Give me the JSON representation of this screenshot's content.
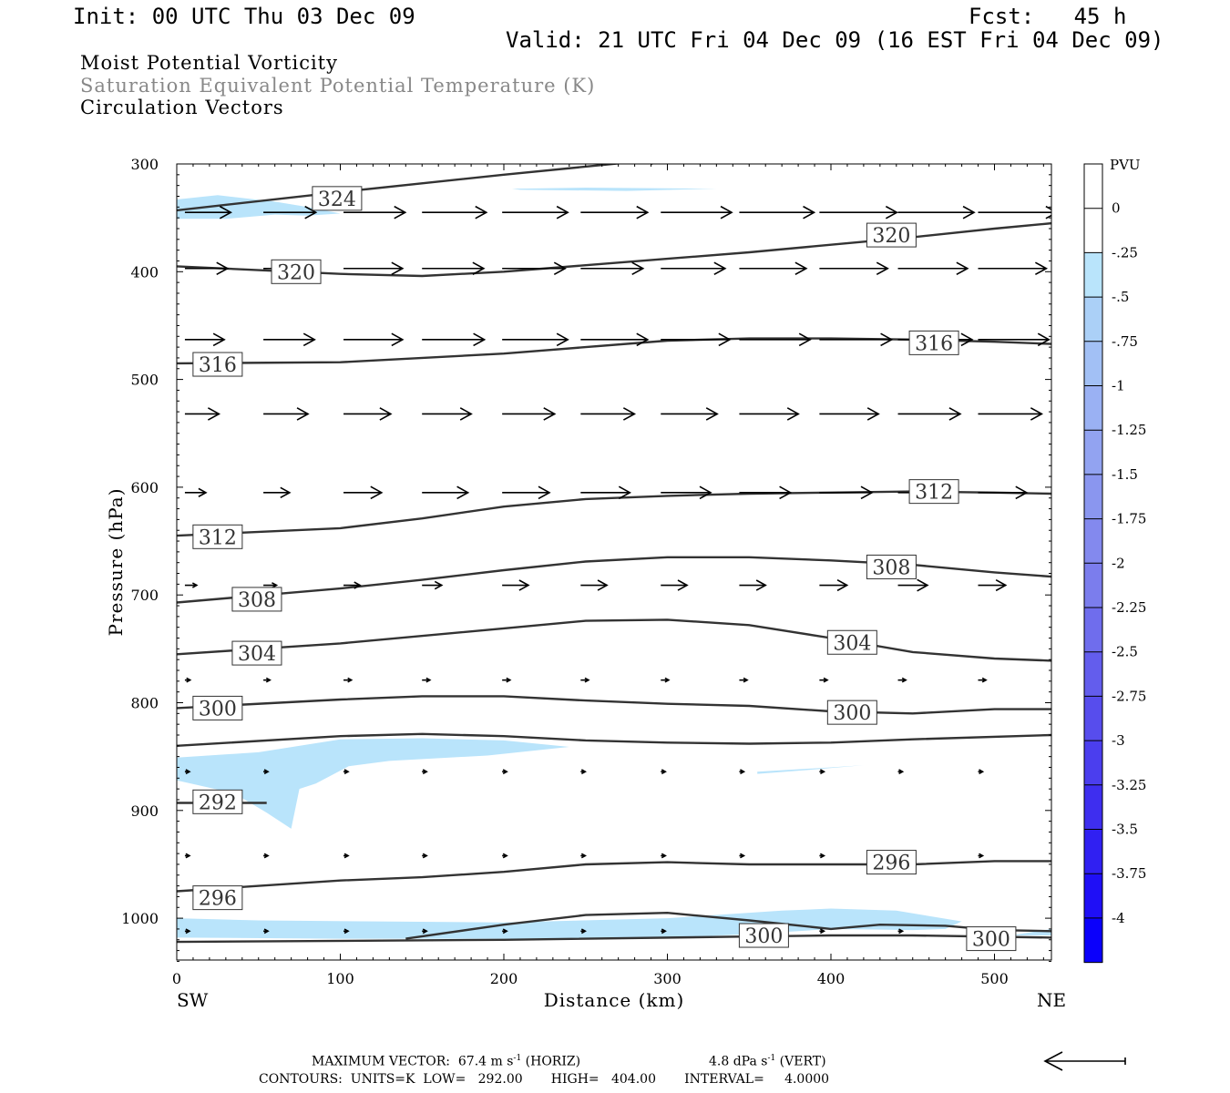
{
  "header": {
    "init": "Init: 00 UTC Thu 03 Dec 09",
    "fcst": "Fcst:   45 h",
    "valid": "Valid: 21 UTC Fri 04 Dec 09 (16 EST Fri 04 Dec 09)"
  },
  "fields": {
    "field1": "Moist Potential Vorticity",
    "field2": "Saturation Equivalent Potential Temperature (K)",
    "field3": "Circulation Vectors",
    "field2_color": "#888888"
  },
  "colorbar": {
    "unit": "PVU",
    "labels": [
      "0",
      "-.25",
      "-.5",
      "-.75",
      "-1",
      "-1.25",
      "-1.5",
      "-1.75",
      "-2",
      "-2.25",
      "-2.5",
      "-2.75",
      "-3",
      "-3.25",
      "-3.5",
      "-3.75",
      "-4"
    ],
    "colors": [
      "#ffffff",
      "#ffffff",
      "#b9e4fb",
      "#abd0f7",
      "#a2c0f5",
      "#9ab1f3",
      "#92a3f1",
      "#8a96ef",
      "#8389ee",
      "#7b7ded",
      "#6f6ded",
      "#635ded",
      "#574ded",
      "#4b3eee",
      "#3e2eef",
      "#3020f2",
      "#1f0ff6",
      "#0b00fb"
    ]
  },
  "footer": {
    "max_vector": "MAXIMUM VECTOR:  67.4 m s",
    "exp1": "-1",
    "horiz": " (HORIZ)",
    "vert_val": "4.8 dPa s",
    "exp2": "-1",
    "vert": " (VERT)",
    "contours": "CONTOURS:  UNITS=K  LOW=   292.00       HIGH=   404.00       INTERVAL=     4.0000"
  },
  "chart_data": {
    "type": "cross-section",
    "xlabel": "Distance (km)",
    "ylabel": "Pressure (hPa)",
    "x_ticks": [
      0,
      100,
      200,
      300,
      400,
      500
    ],
    "y_ticks": [
      300,
      400,
      500,
      600,
      700,
      800,
      900,
      1000
    ],
    "xlim": [
      0,
      535
    ],
    "ylim": [
      1040,
      300
    ],
    "left_end": "SW",
    "right_end": "NE",
    "contour_color": "#333333",
    "mpv_color": "#b9e4fb",
    "contours": [
      {
        "value": 324,
        "x": [
          0,
          100,
          200,
          300,
          290
        ],
        "p": [
          343,
          326,
          310,
          295,
          300
        ],
        "labels": [
          {
            "text": "324",
            "x": 98,
            "p": 332
          }
        ]
      },
      {
        "value": 320,
        "x": [
          0,
          100,
          150,
          200,
          250,
          300,
          350,
          400,
          450,
          500,
          535
        ],
        "p": [
          395,
          402,
          404,
          400,
          394,
          388,
          382,
          375,
          368,
          360,
          355
        ],
        "labels": [
          {
            "text": "320",
            "x": 73,
            "p": 400
          },
          {
            "text": "320",
            "x": 437,
            "p": 366
          }
        ]
      },
      {
        "value": 316,
        "x": [
          0,
          100,
          200,
          250,
          300,
          350,
          400,
          450,
          500,
          535
        ],
        "p": [
          485,
          484,
          476,
          470,
          464,
          462,
          462,
          463,
          465,
          467
        ],
        "labels": [
          {
            "text": "316",
            "x": 25,
            "p": 486
          },
          {
            "text": "316",
            "x": 463,
            "p": 466
          }
        ]
      },
      {
        "value": 312,
        "x": [
          0,
          100,
          150,
          200,
          250,
          300,
          350,
          400,
          450,
          500,
          535
        ],
        "p": [
          645,
          638,
          629,
          618,
          611,
          608,
          606,
          605,
          604,
          605,
          606
        ],
        "labels": [
          {
            "text": "312",
            "x": 25,
            "p": 646
          },
          {
            "text": "312",
            "x": 463,
            "p": 604
          }
        ]
      },
      {
        "value": 308,
        "x": [
          0,
          100,
          150,
          200,
          250,
          300,
          350,
          400,
          450,
          500,
          535
        ],
        "p": [
          707,
          694,
          686,
          677,
          669,
          665,
          665,
          668,
          672,
          679,
          683
        ],
        "labels": [
          {
            "text": "308",
            "x": 49,
            "p": 704
          },
          {
            "text": "308",
            "x": 437,
            "p": 674
          }
        ]
      },
      {
        "value": 304,
        "x": [
          0,
          100,
          200,
          250,
          300,
          350,
          400,
          450,
          500,
          535
        ],
        "p": [
          755,
          745,
          731,
          724,
          723,
          728,
          740,
          753,
          759,
          761
        ],
        "labels": [
          {
            "text": "304",
            "x": 49,
            "p": 754
          },
          {
            "text": "304",
            "x": 413,
            "p": 744
          }
        ]
      },
      {
        "value": 300,
        "x": [
          0,
          100,
          150,
          200,
          250,
          300,
          350,
          400,
          450,
          500,
          535
        ],
        "p": [
          805,
          797,
          794,
          794,
          798,
          801,
          803,
          808,
          810,
          806,
          806
        ],
        "labels": [
          {
            "text": "300",
            "x": 25,
            "p": 805
          },
          {
            "text": "300",
            "x": 413,
            "p": 809
          }
        ]
      },
      {
        "value": 296,
        "x": [
          0,
          100,
          150,
          200,
          250,
          300,
          350,
          400,
          450,
          535
        ],
        "p": [
          840,
          831,
          829,
          831,
          835,
          837,
          838,
          837,
          834,
          830
        ],
        "labels": []
      },
      {
        "value": 292,
        "x": [
          0,
          55
        ],
        "p": [
          893,
          893
        ],
        "labels": [
          {
            "text": "292",
            "x": 25,
            "p": 892
          }
        ]
      },
      {
        "value": 296,
        "x": [
          0,
          100,
          150,
          200,
          250,
          300,
          350,
          400,
          450,
          500,
          535
        ],
        "p": [
          975,
          965,
          962,
          957,
          950,
          948,
          950,
          950,
          950,
          947,
          947
        ],
        "labels": [
          {
            "text": "296",
            "x": 25,
            "p": 981
          },
          {
            "text": "296",
            "x": 437,
            "p": 948
          }
        ]
      },
      {
        "value": 300,
        "x": [
          140,
          200,
          250,
          300,
          350,
          400,
          430,
          470,
          500,
          535
        ],
        "p": [
          1019,
          1006,
          997,
          995,
          1002,
          1010,
          1006,
          1007,
          1011,
          1012
        ],
        "labels": [
          {
            "text": "300",
            "x": 359,
            "p": 1016
          },
          {
            "text": "300",
            "x": 498,
            "p": 1019
          }
        ]
      },
      {
        "value": 300,
        "x": [
          0,
          200,
          350,
          400,
          450,
          535
        ],
        "p": [
          1022,
          1020,
          1017,
          1016,
          1016,
          1018
        ],
        "labels": []
      }
    ],
    "mpv_regions": [
      {
        "x": [
          0,
          25,
          60,
          80,
          100,
          80,
          60,
          30,
          0
        ],
        "p": [
          333,
          329,
          335,
          340,
          346,
          348,
          347,
          351,
          351
        ]
      },
      {
        "x": [
          205,
          250,
          330,
          275,
          210
        ],
        "p": [
          323,
          322,
          323,
          325,
          324
        ]
      },
      {
        "x": [
          0,
          50,
          100,
          150,
          200,
          240,
          190,
          130,
          105,
          85,
          75,
          70,
          55,
          35,
          0
        ],
        "p": [
          851,
          846,
          834,
          833,
          835,
          841,
          849,
          854,
          859,
          875,
          880,
          917,
          902,
          884,
          872
        ]
      },
      {
        "x": [
          355,
          400,
          420,
          390,
          355
        ],
        "p": [
          864,
          860,
          858,
          862,
          866
        ]
      },
      {
        "x": [
          0,
          50,
          200,
          300,
          370,
          400,
          440,
          480,
          470,
          450,
          400,
          350,
          300,
          200,
          100,
          0
        ],
        "p": [
          1000,
          1002,
          1004,
          1000,
          993,
          991,
          993,
          1003,
          1010,
          1011,
          1010,
          1015,
          1018,
          1019,
          1019,
          1018
        ]
      },
      {
        "x": [
          10,
          90,
          180,
          230,
          180,
          90,
          10
        ],
        "p": [
          1014,
          1014,
          1013,
          1015,
          1016,
          1016,
          1016
        ]
      },
      {
        "x": [
          510,
          535,
          535
        ],
        "p": [
          1016,
          1010,
          1016
        ]
      }
    ],
    "vectors": [
      {
        "p": 345,
        "u": [
          70,
          80,
          94,
          98,
          100,
          102,
          108,
          114,
          118,
          116,
          120
        ]
      },
      {
        "p": 397,
        "u": [
          65,
          72,
          90,
          94,
          96,
          95,
          98,
          102,
          104,
          106,
          104
        ]
      },
      {
        "p": 463,
        "u": [
          60,
          78,
          90,
          95,
          100,
          102,
          105,
          108,
          110,
          113,
          108
        ]
      },
      {
        "p": 532,
        "u": [
          52,
          68,
          72,
          75,
          80,
          82,
          86,
          90,
          90,
          95,
          97
        ]
      },
      {
        "p": 605,
        "u": [
          32,
          40,
          58,
          70,
          72,
          75,
          76,
          78,
          80,
          85,
          74
        ]
      },
      {
        "p": 691,
        "u": [
          18,
          20,
          25,
          30,
          40,
          40,
          40,
          40,
          42,
          45,
          42
        ]
      },
      {
        "p": 779,
        "u": [
          8,
          10,
          12,
          12,
          12,
          12,
          12,
          12,
          12,
          12,
          12
        ]
      },
      {
        "p": 864,
        "u": [
          3,
          4,
          5,
          5,
          5,
          5,
          5,
          5,
          5,
          5,
          5
        ]
      },
      {
        "p": 942,
        "u": [
          2,
          2,
          3,
          3,
          3,
          3,
          3,
          3,
          3,
          3,
          3
        ]
      },
      {
        "p": 1012,
        "u": [
          2,
          2,
          2,
          2,
          2,
          2,
          2,
          2,
          2,
          2,
          2
        ]
      }
    ],
    "vector_x": [
      15,
      63,
      112,
      160,
      209,
      257,
      306,
      354,
      403,
      451,
      500
    ],
    "reference_vector": {
      "direction": "leftward"
    }
  }
}
